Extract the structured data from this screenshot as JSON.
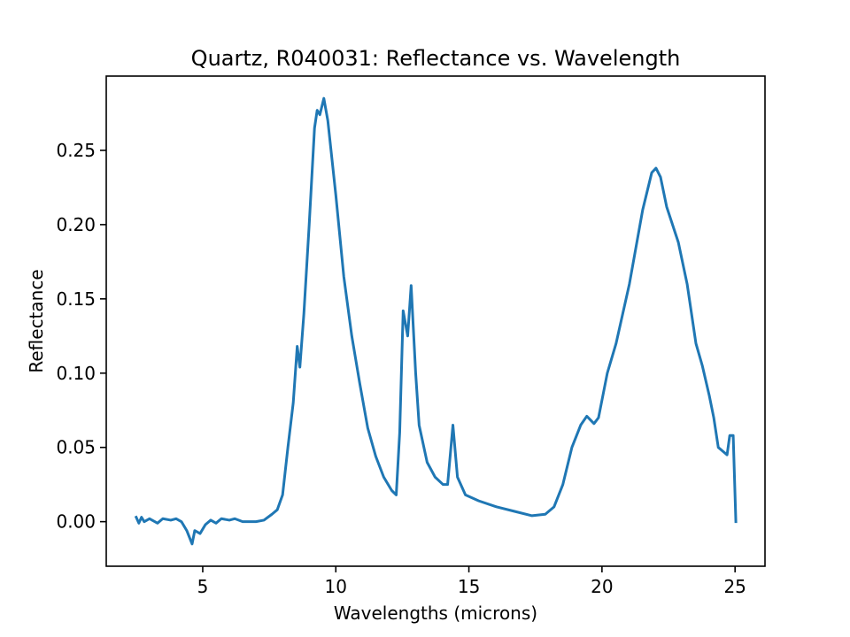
{
  "chart_data": {
    "type": "line",
    "title": "Quartz, R040031: Reflectance vs. Wavelength",
    "xlabel": "Wavelengths (microns)",
    "ylabel": "Reflectance",
    "color": "#1f77b4",
    "x": [
      2.5,
      2.6,
      2.7,
      2.8,
      3.0,
      3.3,
      3.5,
      3.8,
      4.0,
      4.2,
      4.4,
      4.6,
      4.7,
      4.9,
      5.1,
      5.3,
      5.5,
      5.7,
      6.0,
      6.2,
      6.5,
      7.0,
      7.3,
      7.6,
      7.8,
      8.0,
      8.2,
      8.4,
      8.55,
      8.65,
      8.8,
      9.0,
      9.2,
      9.3,
      9.4,
      9.55,
      9.7,
      10.0,
      10.3,
      10.6,
      10.9,
      11.2,
      11.5,
      11.8,
      12.1,
      12.27,
      12.4,
      12.53,
      12.7,
      12.83,
      13.0,
      13.13,
      13.43,
      13.73,
      14.03,
      14.2,
      14.4,
      14.57,
      14.87,
      15.37,
      16.03,
      16.7,
      17.37,
      17.87,
      18.2,
      18.53,
      18.87,
      19.2,
      19.43,
      19.7,
      19.87,
      20.2,
      20.53,
      21.03,
      21.53,
      21.87,
      22.03,
      22.2,
      22.43,
      22.87,
      23.2,
      23.53,
      23.77,
      24.03,
      24.2,
      24.37,
      24.7,
      24.8,
      24.93,
      25.03
    ],
    "values": [
      0.003,
      -0.001,
      0.003,
      0.0,
      0.002,
      -0.001,
      0.002,
      0.001,
      0.002,
      0.0,
      -0.006,
      -0.015,
      -0.006,
      -0.008,
      -0.002,
      0.001,
      -0.001,
      0.002,
      0.001,
      0.002,
      0.0,
      0.0,
      0.001,
      0.005,
      0.008,
      0.018,
      0.05,
      0.08,
      0.118,
      0.104,
      0.14,
      0.2,
      0.265,
      0.277,
      0.274,
      0.285,
      0.27,
      0.22,
      0.165,
      0.125,
      0.093,
      0.063,
      0.044,
      0.03,
      0.021,
      0.018,
      0.06,
      0.142,
      0.125,
      0.159,
      0.1,
      0.065,
      0.04,
      0.03,
      0.025,
      0.025,
      0.065,
      0.03,
      0.018,
      0.014,
      0.01,
      0.007,
      0.004,
      0.005,
      0.01,
      0.025,
      0.05,
      0.065,
      0.071,
      0.066,
      0.07,
      0.1,
      0.12,
      0.16,
      0.21,
      0.235,
      0.238,
      0.232,
      0.212,
      0.188,
      0.16,
      0.12,
      0.105,
      0.085,
      0.07,
      0.05,
      0.045,
      0.058,
      0.058,
      0.0
    ],
    "xlim": [
      1.375,
      26.125
    ],
    "ylim": [
      -0.03,
      0.3
    ],
    "xticks": [
      5,
      10,
      15,
      20,
      25
    ],
    "yticks": [
      {
        "value": 0,
        "label": "0.00"
      },
      {
        "value": 0.05,
        "label": "0.05"
      },
      {
        "value": 0.1,
        "label": "0.10"
      },
      {
        "value": 0.15,
        "label": "0.15"
      },
      {
        "value": 0.2,
        "label": "0.20"
      },
      {
        "value": 0.25,
        "label": "0.25"
      }
    ]
  }
}
